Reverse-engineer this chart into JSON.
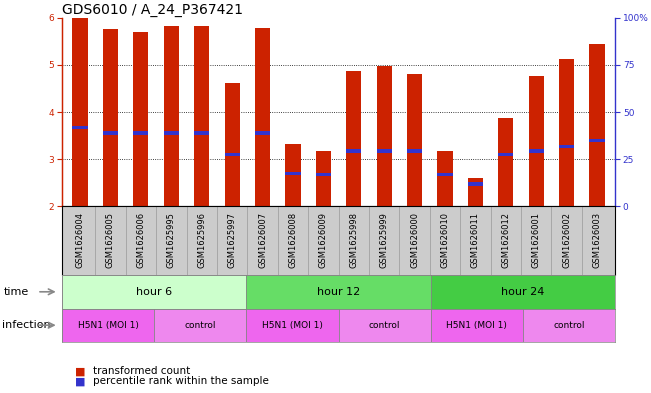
{
  "title": "GDS6010 / A_24_P367421",
  "samples": [
    "GSM1626004",
    "GSM1626005",
    "GSM1626006",
    "GSM1625995",
    "GSM1625996",
    "GSM1625997",
    "GSM1626007",
    "GSM1626008",
    "GSM1626009",
    "GSM1625998",
    "GSM1625999",
    "GSM1626000",
    "GSM1626010",
    "GSM1626011",
    "GSM1626012",
    "GSM1626001",
    "GSM1626002",
    "GSM1626003"
  ],
  "bar_top": [
    6.0,
    5.75,
    5.7,
    5.82,
    5.82,
    4.62,
    5.78,
    3.32,
    3.17,
    4.88,
    4.98,
    4.8,
    3.17,
    2.6,
    3.88,
    4.77,
    5.12,
    5.45
  ],
  "bar_bottom": 2.0,
  "percentile_pos": [
    3.67,
    3.55,
    3.55,
    3.55,
    3.55,
    3.1,
    3.55,
    2.7,
    2.67,
    3.17,
    3.17,
    3.17,
    2.67,
    2.47,
    3.1,
    3.17,
    3.27,
    3.4
  ],
  "bar_color": "#cc2200",
  "percentile_color": "#3333cc",
  "ylim": [
    2.0,
    6.0
  ],
  "yticks_left": [
    2,
    3,
    4,
    5,
    6
  ],
  "yticks_right": [
    0,
    25,
    50,
    75,
    100
  ],
  "ytick_right_labels": [
    "0",
    "25",
    "50",
    "75",
    "100%"
  ],
  "grid_lines": [
    3,
    4,
    5
  ],
  "time_groups": [
    {
      "label": "hour 6",
      "start": 0,
      "end": 5,
      "color": "#ccffcc"
    },
    {
      "label": "hour 12",
      "start": 6,
      "end": 11,
      "color": "#66dd66"
    },
    {
      "label": "hour 24",
      "start": 12,
      "end": 17,
      "color": "#44cc44"
    }
  ],
  "infection_groups": [
    {
      "label": "H5N1 (MOI 1)",
      "start": 0,
      "end": 2,
      "color": "#ee66ee"
    },
    {
      "label": "control",
      "start": 3,
      "end": 5,
      "color": "#ee88ee"
    },
    {
      "label": "H5N1 (MOI 1)",
      "start": 6,
      "end": 8,
      "color": "#ee66ee"
    },
    {
      "label": "control",
      "start": 9,
      "end": 11,
      "color": "#ee88ee"
    },
    {
      "label": "H5N1 (MOI 1)",
      "start": 12,
      "end": 14,
      "color": "#ee66ee"
    },
    {
      "label": "control",
      "start": 15,
      "end": 17,
      "color": "#ee88ee"
    }
  ],
  "sample_bg_color": "#cccccc",
  "sample_border_color": "#999999",
  "time_label": "time",
  "infection_label": "infection",
  "legend_bar_color": "#cc2200",
  "legend_pct_color": "#3333cc",
  "legend_bar_text": "transformed count",
  "legend_pct_text": "percentile rank within the sample",
  "background_color": "#ffffff",
  "bar_width": 0.5,
  "title_fontsize": 10,
  "tick_fontsize": 6.5,
  "sample_fontsize": 6,
  "row_label_fontsize": 8,
  "group_label_fontsize": 8,
  "legend_fontsize": 7.5
}
